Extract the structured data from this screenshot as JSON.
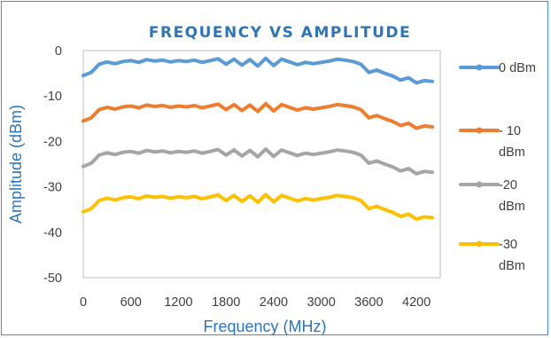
{
  "chart_data": {
    "type": "line",
    "title": "FREQUENCY VS AMPLITUDE",
    "xlabel": "Frequency (MHz)",
    "ylabel": "Amplitude (dBm)",
    "xlim": [
      0,
      4500
    ],
    "ylim": [
      -50,
      0
    ],
    "x_ticks": [
      "0",
      "600",
      "1200",
      "1800",
      "2400",
      "3000",
      "3600",
      "4200"
    ],
    "y_ticks": [
      "0",
      "-10",
      "-20",
      "-30",
      "-40",
      "-50"
    ],
    "x": [
      0,
      100,
      200,
      300,
      400,
      500,
      600,
      700,
      800,
      900,
      1000,
      1100,
      1200,
      1300,
      1400,
      1500,
      1600,
      1700,
      1800,
      1900,
      2000,
      2100,
      2200,
      2300,
      2400,
      2500,
      2600,
      2700,
      2800,
      2900,
      3000,
      3100,
      3200,
      3300,
      3400,
      3500,
      3600,
      3700,
      3800,
      3900,
      4000,
      4100,
      4200,
      4300,
      4400
    ],
    "series": [
      {
        "name": "0 dBm",
        "color": "#5b9bd5",
        "values": [
          -5.5,
          -4.8,
          -3.0,
          -2.5,
          -2.9,
          -2.4,
          -2.2,
          -2.6,
          -2.0,
          -2.3,
          -2.1,
          -2.5,
          -2.2,
          -2.4,
          -2.1,
          -2.6,
          -2.2,
          -1.8,
          -3.0,
          -1.9,
          -3.2,
          -2.0,
          -3.4,
          -1.7,
          -3.3,
          -1.9,
          -2.5,
          -3.1,
          -2.6,
          -2.9,
          -2.6,
          -2.3,
          -1.9,
          -2.1,
          -2.4,
          -3.0,
          -4.8,
          -4.3,
          -5.0,
          -5.6,
          -6.5,
          -6.0,
          -7.1,
          -6.6,
          -6.8
        ]
      },
      {
        "name": "- 10 dBm",
        "color": "#ed7d31",
        "values": [
          -15.5,
          -14.8,
          -13.0,
          -12.5,
          -12.9,
          -12.4,
          -12.2,
          -12.6,
          -12.0,
          -12.3,
          -12.1,
          -12.5,
          -12.2,
          -12.4,
          -12.1,
          -12.6,
          -12.2,
          -11.8,
          -13.0,
          -11.9,
          -13.2,
          -12.0,
          -13.4,
          -11.7,
          -13.3,
          -11.9,
          -12.5,
          -13.1,
          -12.6,
          -12.9,
          -12.6,
          -12.3,
          -11.9,
          -12.1,
          -12.4,
          -13.0,
          -14.8,
          -14.3,
          -15.0,
          -15.6,
          -16.5,
          -16.0,
          -17.1,
          -16.6,
          -16.8
        ]
      },
      {
        "name": "-20 dBm",
        "color": "#a5a5a5",
        "values": [
          -25.5,
          -24.8,
          -23.0,
          -22.5,
          -22.9,
          -22.4,
          -22.2,
          -22.6,
          -22.0,
          -22.3,
          -22.1,
          -22.5,
          -22.2,
          -22.4,
          -22.1,
          -22.6,
          -22.2,
          -21.8,
          -23.0,
          -21.9,
          -23.2,
          -22.0,
          -23.4,
          -21.7,
          -23.3,
          -21.9,
          -22.5,
          -23.1,
          -22.6,
          -22.9,
          -22.6,
          -22.3,
          -21.9,
          -22.1,
          -22.4,
          -23.0,
          -24.8,
          -24.3,
          -25.0,
          -25.6,
          -26.5,
          -26.0,
          -27.1,
          -26.6,
          -26.8
        ]
      },
      {
        "name": "-30 dBm",
        "color": "#ffc000",
        "values": [
          -35.5,
          -34.8,
          -33.0,
          -32.5,
          -32.9,
          -32.4,
          -32.2,
          -32.6,
          -32.0,
          -32.3,
          -32.1,
          -32.5,
          -32.2,
          -32.4,
          -32.1,
          -32.6,
          -32.2,
          -31.8,
          -33.0,
          -31.9,
          -33.2,
          -32.0,
          -33.4,
          -31.7,
          -33.3,
          -31.9,
          -32.5,
          -33.1,
          -32.6,
          -32.9,
          -32.6,
          -32.3,
          -31.9,
          -32.1,
          -32.4,
          -33.0,
          -34.8,
          -34.3,
          -35.0,
          -35.6,
          -36.5,
          -36.0,
          -37.1,
          -36.6,
          -36.8
        ]
      }
    ],
    "legend": {
      "position": "right",
      "entries": [
        {
          "lines": [
            "0 dBm"
          ]
        },
        {
          "lines": [
            "- 10",
            "dBm"
          ]
        },
        {
          "lines": [
            "-20",
            "dBm"
          ]
        },
        {
          "lines": [
            "-30",
            "dBm"
          ]
        }
      ]
    },
    "grid": false
  }
}
